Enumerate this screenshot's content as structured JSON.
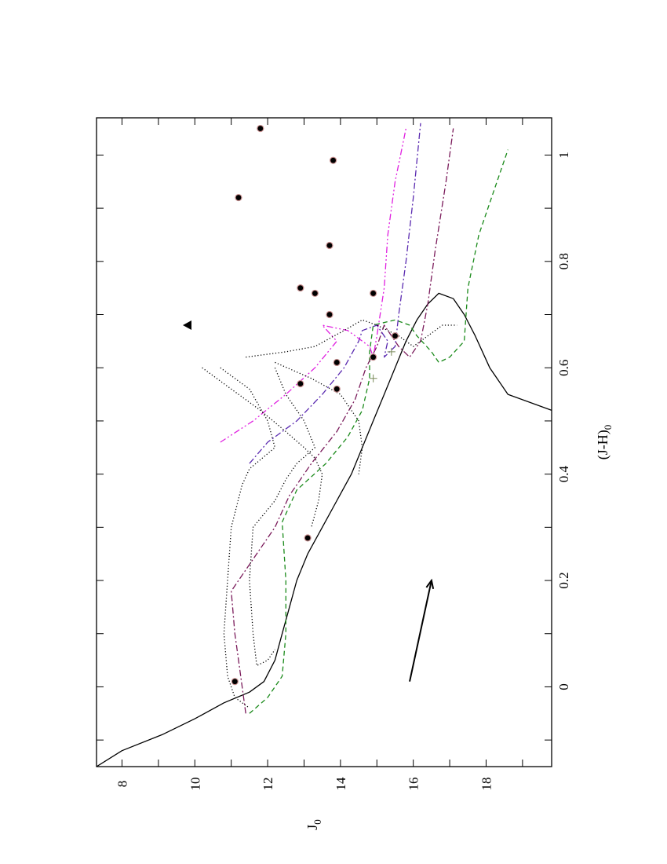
{
  "chart_data": {
    "type": "scatter",
    "orientation": "rotated-90-ccw",
    "xlabel": "(J-H)",
    "xlabel_sub": "0",
    "ylabel": "J",
    "ylabel_sub": "0",
    "xlim": [
      -0.15,
      1.07
    ],
    "ylim": [
      7.3,
      19.8
    ],
    "y_inverted": true,
    "x_ticks": [
      -0.1,
      0,
      0.1,
      0.2,
      0.3,
      0.4,
      0.5,
      0.6,
      0.7,
      0.8,
      0.9,
      1.0
    ],
    "x_tick_labels": [
      {
        "value": 0,
        "label": "0"
      },
      {
        "value": 0.2,
        "label": "0.2"
      },
      {
        "value": 0.4,
        "label": "0.4"
      },
      {
        "value": 0.6,
        "label": "0.6"
      },
      {
        "value": 0.8,
        "label": "0.8"
      },
      {
        "value": 1.0,
        "label": "1"
      }
    ],
    "y_ticks": [
      8,
      9,
      10,
      11,
      12,
      13,
      14,
      15,
      16,
      17,
      18,
      19
    ],
    "y_tick_labels": [
      {
        "value": 8,
        "label": "8"
      },
      {
        "value": 10,
        "label": "10"
      },
      {
        "value": 12,
        "label": "12"
      },
      {
        "value": 14,
        "label": "14"
      },
      {
        "value": 16,
        "label": "16"
      },
      {
        "value": 18,
        "label": "18"
      }
    ],
    "stars": [
      {
        "x": 1.05,
        "y": 11.8
      },
      {
        "x": 0.99,
        "y": 13.8
      },
      {
        "x": 0.92,
        "y": 11.2
      },
      {
        "x": 0.83,
        "y": 13.7
      },
      {
        "x": 0.75,
        "y": 12.9
      },
      {
        "x": 0.74,
        "y": 13.3
      },
      {
        "x": 0.74,
        "y": 14.9
      },
      {
        "x": 0.7,
        "y": 13.7
      },
      {
        "x": 0.66,
        "y": 15.5
      },
      {
        "x": 0.62,
        "y": 14.9
      },
      {
        "x": 0.61,
        "y": 13.9
      },
      {
        "x": 0.57,
        "y": 12.9
      },
      {
        "x": 0.56,
        "y": 13.9
      },
      {
        "x": 0.28,
        "y": 13.1
      },
      {
        "x": 0.01,
        "y": 11.1
      }
    ],
    "triangle": {
      "x": 0.68,
      "y": 9.8
    },
    "plus_marks": [
      {
        "x": 0.58,
        "y": 14.9
      },
      {
        "x": 0.63,
        "y": 15.4
      }
    ],
    "reddening_vector": {
      "x0": 0.01,
      "y0": 15.9,
      "x1": 0.2,
      "y1": 16.5
    },
    "series": [
      {
        "style": "solid",
        "color": "#000000",
        "points": [
          [
            -0.15,
            7.3
          ],
          [
            -0.12,
            8.0
          ],
          [
            -0.09,
            9.1
          ],
          [
            -0.06,
            10.0
          ],
          [
            -0.03,
            10.8
          ],
          [
            -0.01,
            11.5
          ],
          [
            0.01,
            11.9
          ],
          [
            0.05,
            12.2
          ],
          [
            0.1,
            12.4
          ],
          [
            0.15,
            12.6
          ],
          [
            0.2,
            12.8
          ],
          [
            0.25,
            13.1
          ],
          [
            0.3,
            13.5
          ],
          [
            0.35,
            13.9
          ],
          [
            0.4,
            14.3
          ],
          [
            0.45,
            14.6
          ],
          [
            0.5,
            14.9
          ],
          [
            0.55,
            15.2
          ],
          [
            0.6,
            15.5
          ],
          [
            0.65,
            15.8
          ],
          [
            0.69,
            16.1
          ],
          [
            0.72,
            16.4
          ],
          [
            0.74,
            16.7
          ],
          [
            0.73,
            17.1
          ],
          [
            0.7,
            17.4
          ],
          [
            0.66,
            17.7
          ],
          [
            0.6,
            18.1
          ],
          [
            0.55,
            18.6
          ],
          [
            0.52,
            19.8
          ]
        ]
      },
      {
        "style": "dashed",
        "color": "#1a8a1a",
        "points": [
          [
            -0.05,
            11.5
          ],
          [
            -0.02,
            12.0
          ],
          [
            0.02,
            12.4
          ],
          [
            0.1,
            12.5
          ],
          [
            0.2,
            12.5
          ],
          [
            0.31,
            12.4
          ],
          [
            0.37,
            12.8
          ],
          [
            0.42,
            13.6
          ],
          [
            0.47,
            14.2
          ],
          [
            0.52,
            14.6
          ],
          [
            0.58,
            14.8
          ],
          [
            0.63,
            14.8
          ],
          [
            0.68,
            14.9
          ],
          [
            0.69,
            15.5
          ],
          [
            0.68,
            15.9
          ],
          [
            0.66,
            16.1
          ],
          [
            0.63,
            16.5
          ],
          [
            0.61,
            16.7
          ],
          [
            0.62,
            17.0
          ],
          [
            0.65,
            17.4
          ],
          [
            0.75,
            17.5
          ],
          [
            0.85,
            17.8
          ],
          [
            0.95,
            18.3
          ],
          [
            1.01,
            18.6
          ]
        ]
      },
      {
        "style": "dashdot",
        "color": "#7a1a5a",
        "points": [
          [
            -0.05,
            11.4
          ],
          [
            0.05,
            11.2
          ],
          [
            0.1,
            11.1
          ],
          [
            0.18,
            11.0
          ],
          [
            0.26,
            11.8
          ],
          [
            0.3,
            12.2
          ],
          [
            0.36,
            12.6
          ],
          [
            0.42,
            13.2
          ],
          [
            0.48,
            13.9
          ],
          [
            0.54,
            14.4
          ],
          [
            0.6,
            14.7
          ],
          [
            0.64,
            15.0
          ],
          [
            0.68,
            15.2
          ],
          [
            0.64,
            15.6
          ],
          [
            0.62,
            15.9
          ],
          [
            0.65,
            16.2
          ],
          [
            0.72,
            16.4
          ],
          [
            0.82,
            16.6
          ],
          [
            0.95,
            16.9
          ],
          [
            1.05,
            17.1
          ]
        ]
      },
      {
        "style": "dashdot",
        "color": "#5a2ab0",
        "points": [
          [
            0.42,
            11.5
          ],
          [
            0.46,
            12.0
          ],
          [
            0.5,
            12.8
          ],
          [
            0.55,
            13.5
          ],
          [
            0.6,
            14.1
          ],
          [
            0.65,
            14.5
          ],
          [
            0.67,
            14.6
          ],
          [
            0.68,
            15.0
          ],
          [
            0.65,
            15.3
          ],
          [
            0.62,
            15.2
          ],
          [
            0.64,
            15.5
          ],
          [
            0.7,
            15.6
          ],
          [
            0.8,
            15.8
          ],
          [
            0.92,
            16.0
          ],
          [
            1.06,
            16.2
          ]
        ]
      },
      {
        "style": "dashdotdot",
        "color": "#e020e0",
        "points": [
          [
            0.46,
            10.7
          ],
          [
            0.5,
            11.6
          ],
          [
            0.55,
            12.5
          ],
          [
            0.6,
            13.3
          ],
          [
            0.65,
            13.9
          ],
          [
            0.68,
            13.5
          ],
          [
            0.67,
            14.2
          ],
          [
            0.64,
            14.8
          ],
          [
            0.62,
            14.9
          ],
          [
            0.66,
            15.0
          ],
          [
            0.75,
            15.2
          ],
          [
            0.85,
            15.3
          ],
          [
            0.95,
            15.5
          ],
          [
            1.05,
            15.8
          ]
        ]
      },
      {
        "style": "dotted",
        "color": "#000000",
        "points": [
          [
            0.6,
            10.7
          ],
          [
            0.56,
            11.5
          ],
          [
            0.5,
            12.0
          ],
          [
            0.45,
            12.2
          ],
          [
            0.41,
            11.5
          ],
          [
            0.38,
            11.3
          ],
          [
            0.3,
            11.0
          ],
          [
            0.2,
            10.9
          ],
          [
            0.1,
            10.8
          ],
          [
            0.02,
            10.9
          ],
          [
            -0.02,
            11.1
          ],
          [
            -0.04,
            11.5
          ]
        ]
      },
      {
        "style": "dotted",
        "color": "#000000",
        "points": [
          [
            0.6,
            12.2
          ],
          [
            0.55,
            12.5
          ],
          [
            0.5,
            13.0
          ],
          [
            0.45,
            13.3
          ],
          [
            0.42,
            12.8
          ],
          [
            0.39,
            12.5
          ],
          [
            0.35,
            12.2
          ],
          [
            0.3,
            11.6
          ],
          [
            0.2,
            11.5
          ],
          [
            0.1,
            11.6
          ],
          [
            0.04,
            11.7
          ],
          [
            0.05,
            12.0
          ],
          [
            0.07,
            12.2
          ]
        ]
      },
      {
        "style": "dotted",
        "color": "#000000",
        "points": [
          [
            0.6,
            10.2
          ],
          [
            0.56,
            11.0
          ],
          [
            0.52,
            11.8
          ],
          [
            0.48,
            12.5
          ],
          [
            0.45,
            13.0
          ],
          [
            0.43,
            13.3
          ],
          [
            0.4,
            13.5
          ],
          [
            0.35,
            13.4
          ],
          [
            0.3,
            13.2
          ]
        ]
      },
      {
        "style": "dotted",
        "color": "#000000",
        "points": [
          [
            0.61,
            12.2
          ],
          [
            0.58,
            13.2
          ],
          [
            0.55,
            14.0
          ],
          [
            0.5,
            14.5
          ],
          [
            0.45,
            14.6
          ],
          [
            0.4,
            14.5
          ]
        ]
      },
      {
        "style": "dotted",
        "color": "#000000",
        "points": [
          [
            0.62,
            11.4
          ],
          [
            0.63,
            12.5
          ],
          [
            0.64,
            13.3
          ],
          [
            0.67,
            14.1
          ],
          [
            0.69,
            14.6
          ],
          [
            0.68,
            15.0
          ],
          [
            0.66,
            15.6
          ],
          [
            0.64,
            16.0
          ],
          [
            0.66,
            16.4
          ],
          [
            0.68,
            16.8
          ],
          [
            0.68,
            17.2
          ]
        ]
      }
    ]
  }
}
